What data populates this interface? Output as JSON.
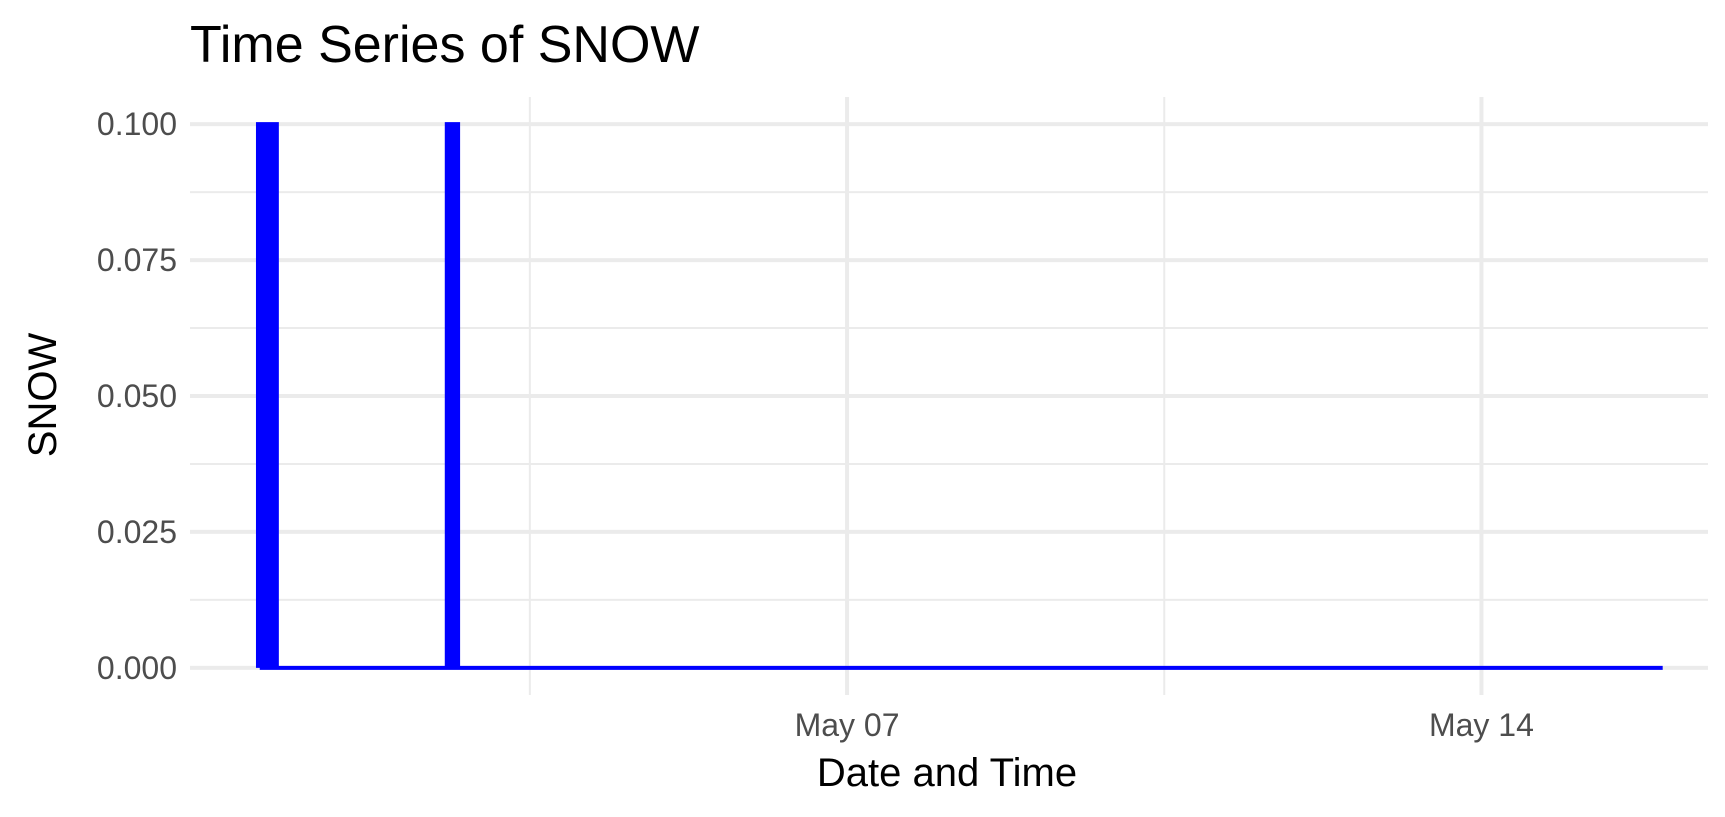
{
  "chart_data": {
    "type": "line",
    "title": "Time Series of SNOW",
    "xlabel": "Date and Time",
    "ylabel": "SNOW",
    "x_tick_labels": [
      "May 07",
      "May 14"
    ],
    "y_tick_labels": [
      "0.000",
      "0.025",
      "0.050",
      "0.075",
      "0.100"
    ],
    "ylim": [
      -0.005,
      0.105
    ],
    "xlim": [
      "2024-04-29T18:00",
      "2024-05-16T12:00"
    ],
    "grid": true,
    "line_color": "#0000ff",
    "series": [
      {
        "x": [
          "2024-04-30T12:00",
          "2024-04-30T12:00",
          "2024-04-30T13:00",
          "2024-04-30T13:00",
          "2024-04-30T14:00",
          "2024-04-30T14:00",
          "2024-04-30T15:00",
          "2024-04-30T15:00",
          "2024-04-30T16:00",
          "2024-04-30T16:00",
          "2024-04-30T17:00",
          "2024-04-30T17:00",
          "2024-05-02T14:00",
          "2024-05-02T14:00",
          "2024-05-02T15:00",
          "2024-05-02T15:00",
          "2024-05-02T16:00",
          "2024-05-02T16:00",
          "2024-05-02T17:00",
          "2024-05-02T17:00",
          "2024-05-16T00:00"
        ],
        "values": [
          0,
          0.1,
          0.1,
          0,
          0,
          0.1,
          0.1,
          0,
          0,
          0.1,
          0.1,
          0,
          0,
          0.1,
          0.1,
          0,
          0,
          0.1,
          0.1,
          0,
          0
        ]
      }
    ]
  }
}
